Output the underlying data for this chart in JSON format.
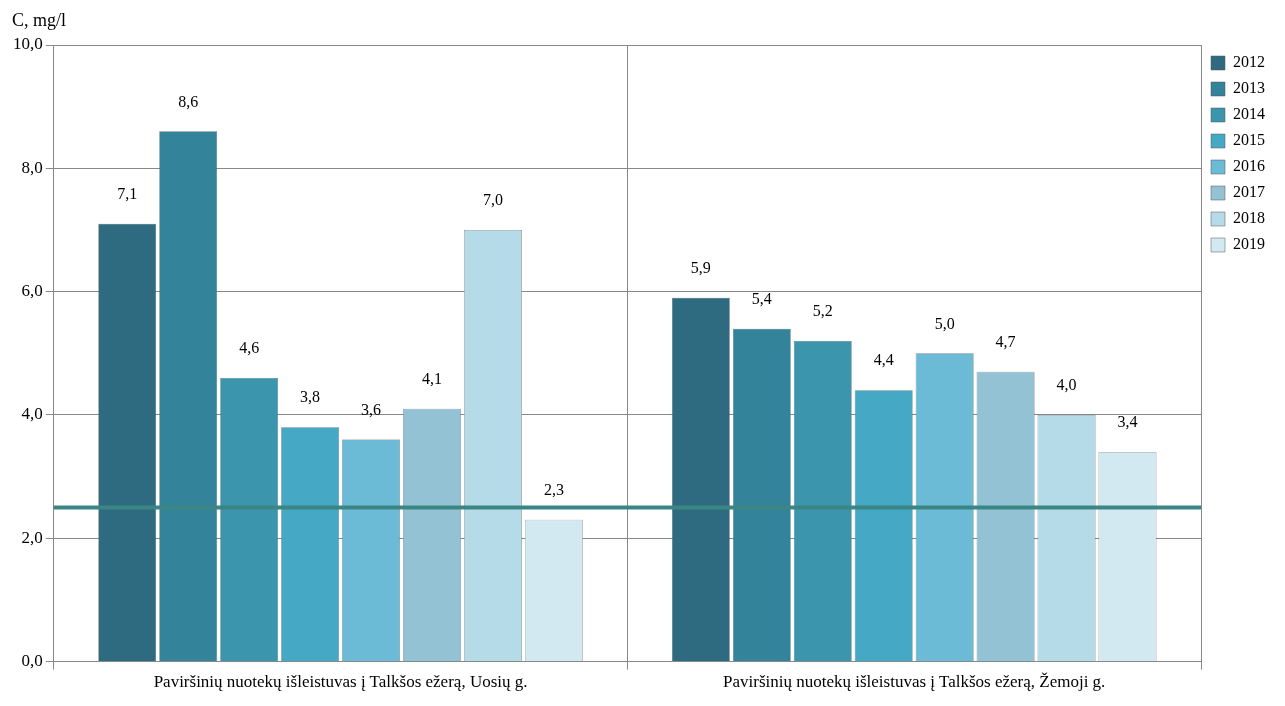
{
  "chart_data": {
    "type": "bar",
    "ylabel": "C, mg/l",
    "categories": [
      "Paviršinių nuotekų išleistuvas į Talkšos ežerą, Uosių g.",
      "Paviršinių nuotekų išleistuvas į Talkšos ežerą, Žemoji g."
    ],
    "series": [
      {
        "name": "2012",
        "color": "#2e6b80",
        "values": [
          7.1,
          5.9
        ],
        "value_labels": [
          "7,1",
          "5,9"
        ]
      },
      {
        "name": "2013",
        "color": "#33839a",
        "values": [
          8.6,
          5.4
        ],
        "value_labels": [
          "8,6",
          "5,4"
        ]
      },
      {
        "name": "2014",
        "color": "#3a95ad",
        "values": [
          4.6,
          5.2
        ],
        "value_labels": [
          "4,6",
          "5,2"
        ]
      },
      {
        "name": "2015",
        "color": "#45a9c6",
        "values": [
          3.8,
          4.4
        ],
        "value_labels": [
          "3,8",
          "4,4"
        ]
      },
      {
        "name": "2016",
        "color": "#6bbbd6",
        "values": [
          3.6,
          5.0
        ],
        "value_labels": [
          "3,6",
          "5,0"
        ]
      },
      {
        "name": "2017",
        "color": "#93c2d4",
        "values": [
          4.1,
          4.7
        ],
        "value_labels": [
          "4,1",
          "4,7"
        ]
      },
      {
        "name": "2018",
        "color": "#b5dbe8",
        "values": [
          7.0,
          4.0
        ],
        "value_labels": [
          "7,0",
          "4,0"
        ]
      },
      {
        "name": "2019",
        "color": "#d3e9f2",
        "values": [
          2.3,
          3.4
        ],
        "value_labels": [
          "2,3",
          "3,4"
        ]
      }
    ],
    "ylim": [
      0,
      10
    ],
    "yticks": [
      {
        "value": 0,
        "label": "0,0"
      },
      {
        "value": 2,
        "label": "2,0"
      },
      {
        "value": 4,
        "label": "4,0"
      },
      {
        "value": 6,
        "label": "6,0"
      },
      {
        "value": 8,
        "label": "8,0"
      },
      {
        "value": 10,
        "label": "10,0"
      }
    ],
    "ref_lines": [
      {
        "axis": "y",
        "value": 2.5,
        "color": "#3b8584"
      }
    ],
    "grid": true,
    "legend": "right"
  }
}
